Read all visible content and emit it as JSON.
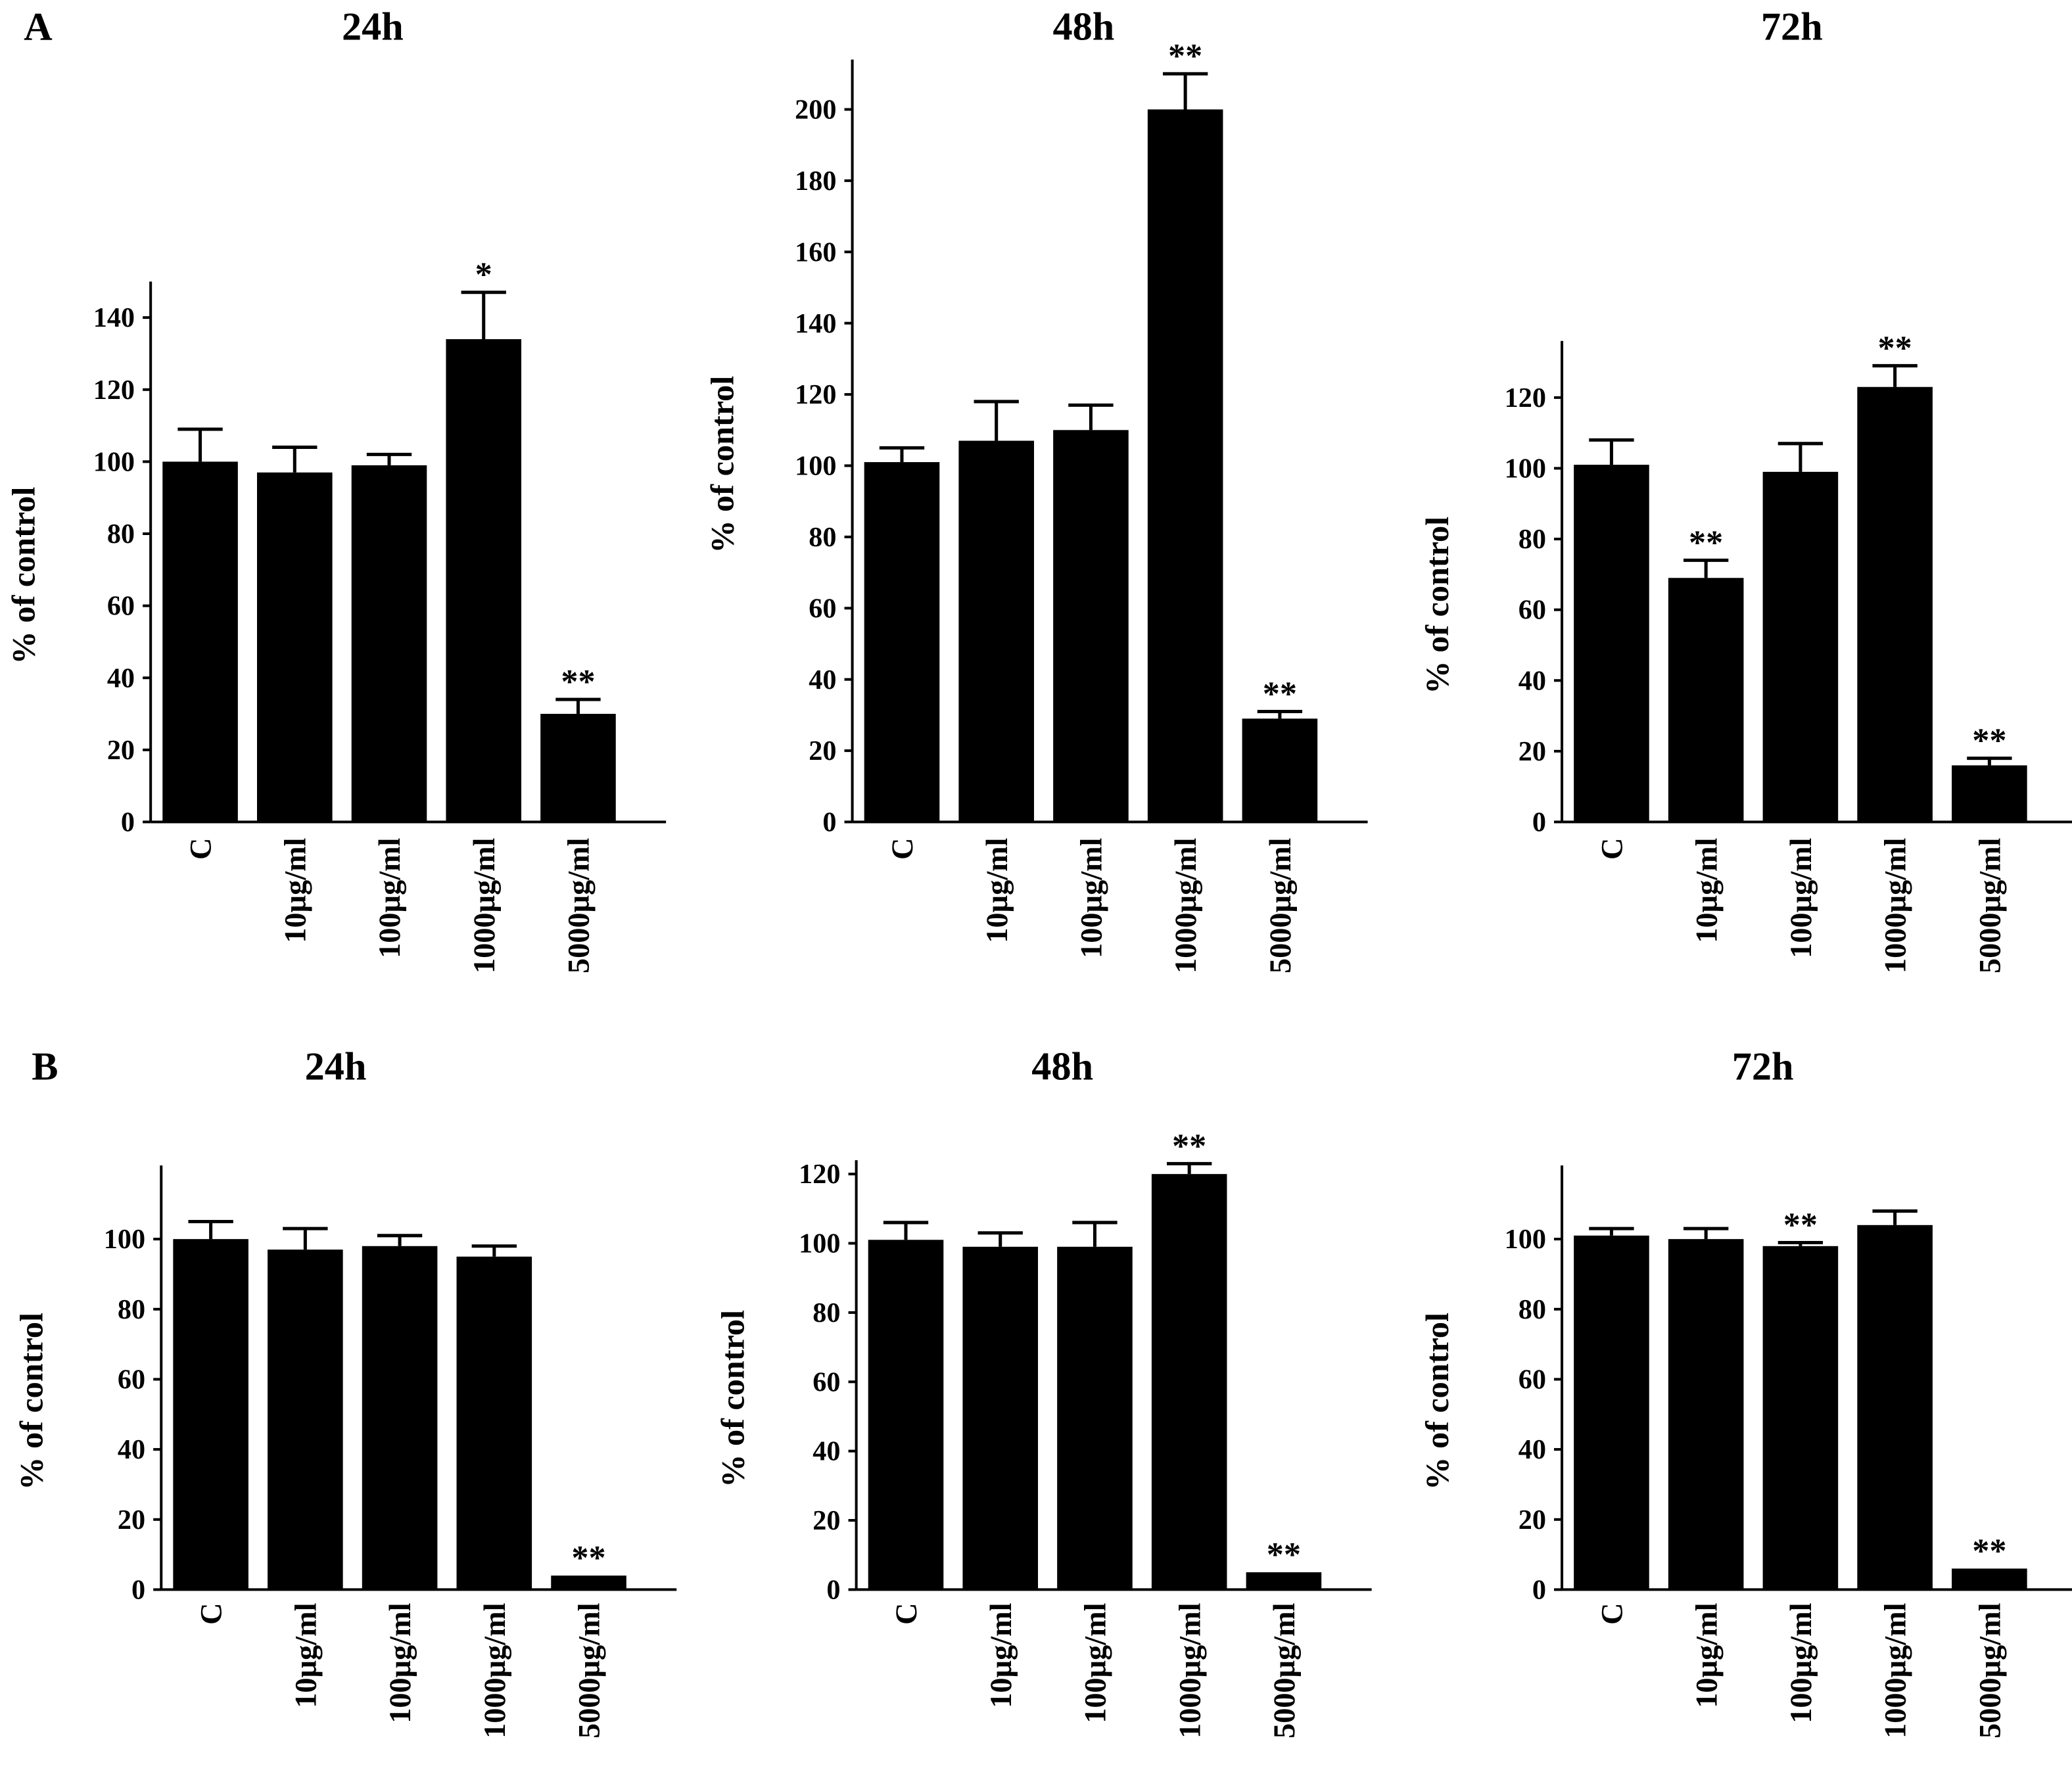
{
  "panel_labels": [
    "A",
    "B"
  ],
  "chart_data": [
    {
      "type": "bar",
      "panel": "A",
      "title": "24h",
      "ylabel": "% of control",
      "xlabel": "",
      "categories": [
        "C",
        "10µg/ml",
        "100µg/ml",
        "1000µg/ml",
        "5000µg/ml"
      ],
      "values": [
        100,
        97,
        99,
        134,
        30
      ],
      "errors": [
        9,
        7,
        3,
        13,
        4
      ],
      "annotations": [
        "",
        "",
        "",
        "*",
        "**"
      ],
      "yticks": [
        0,
        20,
        40,
        60,
        80,
        100,
        120,
        140
      ],
      "ylim": [
        0,
        150
      ],
      "colors": {
        "bar": "#000000"
      }
    },
    {
      "type": "bar",
      "panel": "A",
      "title": "48h",
      "ylabel": "% of control",
      "xlabel": "",
      "categories": [
        "C",
        "10µg/ml",
        "100µg/ml",
        "1000µg/ml",
        "5000µg/ml"
      ],
      "values": [
        101,
        107,
        110,
        200,
        29
      ],
      "errors": [
        4,
        11,
        7,
        10,
        2
      ],
      "annotations": [
        "",
        "",
        "",
        "**",
        "**"
      ],
      "yticks": [
        0,
        20,
        40,
        60,
        80,
        100,
        120,
        140,
        160,
        180,
        200
      ],
      "ylim": [
        0,
        214
      ],
      "colors": {
        "bar": "#000000"
      }
    },
    {
      "type": "bar",
      "panel": "A",
      "title": "72h",
      "ylabel": "% of control",
      "xlabel": "",
      "categories": [
        "C",
        "10µg/ml",
        "100µg/ml",
        "1000µg/ml",
        "5000µg/ml"
      ],
      "values": [
        101,
        69,
        99,
        123,
        16
      ],
      "errors": [
        7,
        5,
        8,
        6,
        2
      ],
      "annotations": [
        "",
        "**",
        "",
        "**",
        "**"
      ],
      "yticks": [
        0,
        20,
        40,
        60,
        80,
        100,
        120
      ],
      "ylim": [
        0,
        136
      ],
      "colors": {
        "bar": "#000000"
      }
    },
    {
      "type": "bar",
      "panel": "B",
      "title": "24h",
      "ylabel": "% of control",
      "xlabel": "",
      "categories": [
        "C",
        "10µg/ml",
        "100µg/ml",
        "1000µg/ml",
        "5000µg/ml"
      ],
      "values": [
        100,
        97,
        98,
        95,
        4
      ],
      "errors": [
        5,
        6,
        3,
        3,
        0
      ],
      "annotations": [
        "",
        "",
        "",
        "",
        "**"
      ],
      "yticks": [
        0,
        20,
        40,
        60,
        80,
        100
      ],
      "ylim": [
        0,
        121
      ],
      "colors": {
        "bar": "#000000"
      }
    },
    {
      "type": "bar",
      "panel": "B",
      "title": "48h",
      "ylabel": "% of control",
      "xlabel": "",
      "categories": [
        "C",
        "10µg/ml",
        "100µg/ml",
        "1000µg/ml",
        "5000µg/ml"
      ],
      "values": [
        101,
        99,
        99,
        120,
        5
      ],
      "errors": [
        5,
        4,
        7,
        3,
        0
      ],
      "annotations": [
        "",
        "",
        "",
        "**",
        "**"
      ],
      "yticks": [
        0,
        20,
        40,
        60,
        80,
        100,
        120
      ],
      "ylim": [
        0,
        124
      ],
      "colors": {
        "bar": "#000000"
      }
    },
    {
      "type": "bar",
      "panel": "B",
      "title": "72h",
      "ylabel": "% of control",
      "xlabel": "",
      "categories": [
        "C",
        "10µg/ml",
        "100µg/ml",
        "1000µg/ml",
        "5000µg/ml"
      ],
      "values": [
        101,
        100,
        98,
        104,
        6
      ],
      "errors": [
        2,
        3,
        1,
        4,
        0
      ],
      "annotations": [
        "",
        "",
        "**",
        "",
        "**"
      ],
      "yticks": [
        0,
        20,
        40,
        60,
        80,
        100
      ],
      "ylim": [
        0,
        121
      ],
      "colors": {
        "bar": "#000000"
      }
    }
  ]
}
